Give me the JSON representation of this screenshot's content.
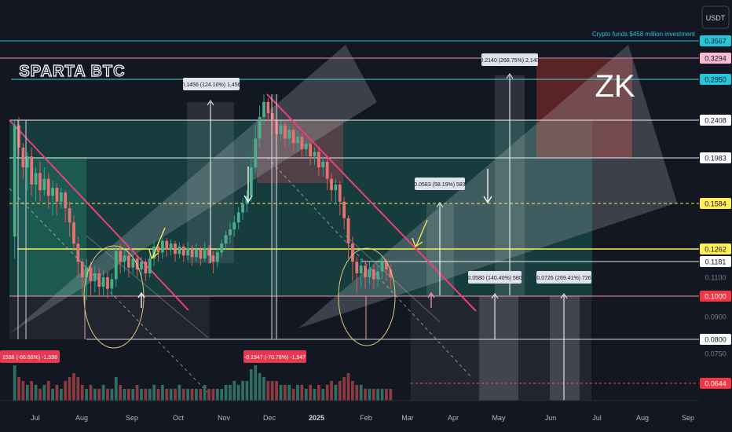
{
  "chart_data": {
    "type": "candlestick",
    "title": "ZK",
    "watermark": "SPARTA BTC",
    "currency": "USDT",
    "headline": "Crypto funds $458 million investment",
    "x_ticks": [
      "Jul",
      "Aug",
      "Sep",
      "Oct",
      "Nov",
      "Dec",
      "2025",
      "Feb",
      "Mar",
      "Apr",
      "May",
      "Jun",
      "Jul",
      "Aug",
      "Sep"
    ],
    "price_scale": [
      {
        "value": "0.3567",
        "style": "cyan"
      },
      {
        "value": "0.3294",
        "style": "pink"
      },
      {
        "value": "0.2950",
        "style": "cyan"
      },
      {
        "value": "0.2408",
        "style": "white"
      },
      {
        "value": "0.1983",
        "style": "white"
      },
      {
        "value": "0.1584",
        "style": "yellow"
      },
      {
        "value": "0.1262",
        "style": "yellow"
      },
      {
        "value": "0.1181",
        "style": "white"
      },
      {
        "value": "0.1100",
        "style": "plain"
      },
      {
        "value": "0.1000",
        "style": "red"
      },
      {
        "value": "0.0900",
        "style": "plain"
      },
      {
        "value": "0.0800",
        "style": "white"
      },
      {
        "value": "0.0750",
        "style": "plain"
      },
      {
        "value": "0.0644",
        "style": "red"
      }
    ],
    "measure_labels": [
      {
        "text": "0.1456 (124.10%) 1,456",
        "kind": "up"
      },
      {
        "text": "0.2140 (268.75%) 2,140",
        "kind": "up"
      },
      {
        "text": "0.0583 (58.19%) 583",
        "kind": "up"
      },
      {
        "text": "0.0580 (140.40%) 580",
        "kind": "up"
      },
      {
        "text": "0.0726 (269.41%) 726",
        "kind": "up"
      },
      {
        "text": "-0.1947 (-70.78%) -1,947",
        "kind": "down"
      },
      {
        "text": "1598 (-66.66%) -1,598",
        "kind": "down"
      }
    ],
    "candles": [
      [
        0.135,
        0.235,
        0.12,
        0.24
      ],
      [
        0.235,
        0.21,
        0.2,
        0.245
      ],
      [
        0.21,
        0.19,
        0.18,
        0.215
      ],
      [
        0.19,
        0.2,
        0.17,
        0.205
      ],
      [
        0.2,
        0.175,
        0.165,
        0.21
      ],
      [
        0.175,
        0.185,
        0.16,
        0.19
      ],
      [
        0.185,
        0.17,
        0.16,
        0.195
      ],
      [
        0.17,
        0.18,
        0.165,
        0.19
      ],
      [
        0.18,
        0.165,
        0.155,
        0.185
      ],
      [
        0.165,
        0.172,
        0.15,
        0.178
      ],
      [
        0.172,
        0.16,
        0.15,
        0.176
      ],
      [
        0.16,
        0.168,
        0.155,
        0.172
      ],
      [
        0.168,
        0.155,
        0.145,
        0.17
      ],
      [
        0.155,
        0.145,
        0.135,
        0.16
      ],
      [
        0.145,
        0.13,
        0.125,
        0.15
      ],
      [
        0.13,
        0.118,
        0.11,
        0.135
      ],
      [
        0.118,
        0.11,
        0.1,
        0.12
      ],
      [
        0.11,
        0.115,
        0.098,
        0.12
      ],
      [
        0.115,
        0.108,
        0.1,
        0.118
      ],
      [
        0.108,
        0.112,
        0.102,
        0.116
      ],
      [
        0.112,
        0.105,
        0.1,
        0.115
      ],
      [
        0.105,
        0.11,
        0.1,
        0.114
      ],
      [
        0.11,
        0.104,
        0.099,
        0.113
      ],
      [
        0.104,
        0.109,
        0.1,
        0.112
      ],
      [
        0.109,
        0.125,
        0.105,
        0.128
      ],
      [
        0.125,
        0.118,
        0.112,
        0.13
      ],
      [
        0.118,
        0.122,
        0.113,
        0.126
      ],
      [
        0.122,
        0.115,
        0.11,
        0.124
      ],
      [
        0.115,
        0.12,
        0.112,
        0.123
      ],
      [
        0.12,
        0.114,
        0.11,
        0.122
      ],
      [
        0.114,
        0.118,
        0.11,
        0.121
      ],
      [
        0.118,
        0.112,
        0.108,
        0.12
      ],
      [
        0.112,
        0.12,
        0.11,
        0.123
      ],
      [
        0.12,
        0.128,
        0.116,
        0.132
      ],
      [
        0.128,
        0.124,
        0.118,
        0.131
      ],
      [
        0.124,
        0.132,
        0.12,
        0.135
      ],
      [
        0.132,
        0.126,
        0.121,
        0.134
      ],
      [
        0.126,
        0.13,
        0.122,
        0.133
      ],
      [
        0.13,
        0.123,
        0.118,
        0.132
      ],
      [
        0.123,
        0.128,
        0.12,
        0.131
      ],
      [
        0.128,
        0.122,
        0.118,
        0.13
      ],
      [
        0.122,
        0.127,
        0.119,
        0.131
      ],
      [
        0.127,
        0.121,
        0.116,
        0.129
      ],
      [
        0.121,
        0.126,
        0.118,
        0.13
      ],
      [
        0.126,
        0.12,
        0.116,
        0.128
      ],
      [
        0.12,
        0.127,
        0.118,
        0.131
      ],
      [
        0.127,
        0.122,
        0.117,
        0.129
      ],
      [
        0.122,
        0.118,
        0.112,
        0.125
      ],
      [
        0.118,
        0.124,
        0.115,
        0.127
      ],
      [
        0.124,
        0.13,
        0.121,
        0.133
      ],
      [
        0.13,
        0.136,
        0.126,
        0.139
      ],
      [
        0.136,
        0.14,
        0.13,
        0.145
      ],
      [
        0.14,
        0.145,
        0.135,
        0.15
      ],
      [
        0.145,
        0.152,
        0.14,
        0.156
      ],
      [
        0.152,
        0.158,
        0.147,
        0.163
      ],
      [
        0.158,
        0.165,
        0.152,
        0.17
      ],
      [
        0.165,
        0.19,
        0.16,
        0.2
      ],
      [
        0.19,
        0.22,
        0.185,
        0.235
      ],
      [
        0.22,
        0.245,
        0.21,
        0.26
      ],
      [
        0.245,
        0.265,
        0.235,
        0.275
      ],
      [
        0.265,
        0.25,
        0.24,
        0.27
      ],
      [
        0.25,
        0.24,
        0.225,
        0.258
      ],
      [
        0.24,
        0.225,
        0.215,
        0.248
      ],
      [
        0.225,
        0.235,
        0.218,
        0.24
      ],
      [
        0.235,
        0.22,
        0.21,
        0.238
      ],
      [
        0.22,
        0.23,
        0.212,
        0.235
      ],
      [
        0.23,
        0.215,
        0.205,
        0.233
      ],
      [
        0.215,
        0.222,
        0.205,
        0.228
      ],
      [
        0.222,
        0.208,
        0.2,
        0.226
      ],
      [
        0.208,
        0.214,
        0.2,
        0.218
      ],
      [
        0.214,
        0.2,
        0.192,
        0.216
      ],
      [
        0.2,
        0.205,
        0.192,
        0.21
      ],
      [
        0.205,
        0.19,
        0.182,
        0.208
      ],
      [
        0.19,
        0.195,
        0.182,
        0.2
      ],
      [
        0.195,
        0.18,
        0.17,
        0.198
      ],
      [
        0.18,
        0.17,
        0.16,
        0.185
      ],
      [
        0.17,
        0.175,
        0.158,
        0.18
      ],
      [
        0.175,
        0.16,
        0.15,
        0.178
      ],
      [
        0.16,
        0.148,
        0.14,
        0.164
      ],
      [
        0.148,
        0.13,
        0.12,
        0.15
      ],
      [
        0.13,
        0.118,
        0.108,
        0.135
      ],
      [
        0.118,
        0.112,
        0.102,
        0.121
      ],
      [
        0.112,
        0.116,
        0.105,
        0.12
      ],
      [
        0.116,
        0.11,
        0.104,
        0.119
      ],
      [
        0.11,
        0.114,
        0.106,
        0.118
      ],
      [
        0.114,
        0.109,
        0.104,
        0.117
      ],
      [
        0.109,
        0.113,
        0.105,
        0.116
      ],
      [
        0.113,
        0.118,
        0.109,
        0.121
      ],
      [
        0.118,
        0.114,
        0.108,
        0.12
      ],
      [
        0.114,
        0.11,
        0.104,
        0.117
      ]
    ],
    "volumes": [
      9,
      6,
      5,
      4,
      5,
      4,
      3,
      4,
      5,
      3,
      4,
      3,
      5,
      6,
      7,
      6,
      4,
      3,
      4,
      3,
      3,
      4,
      3,
      3,
      6,
      4,
      3,
      3,
      3,
      4,
      3,
      3,
      3,
      4,
      3,
      4,
      3,
      3,
      3,
      4,
      3,
      3,
      3,
      3,
      3,
      4,
      3,
      3,
      3,
      3,
      4,
      4,
      5,
      4,
      5,
      5,
      8,
      9,
      7,
      6,
      5,
      5,
      5,
      4,
      4,
      4,
      3,
      4,
      4,
      3,
      4,
      3,
      4,
      3,
      4,
      5,
      4,
      5,
      6,
      7,
      5,
      4,
      4,
      3,
      3,
      3,
      3,
      3,
      3,
      3
    ]
  }
}
